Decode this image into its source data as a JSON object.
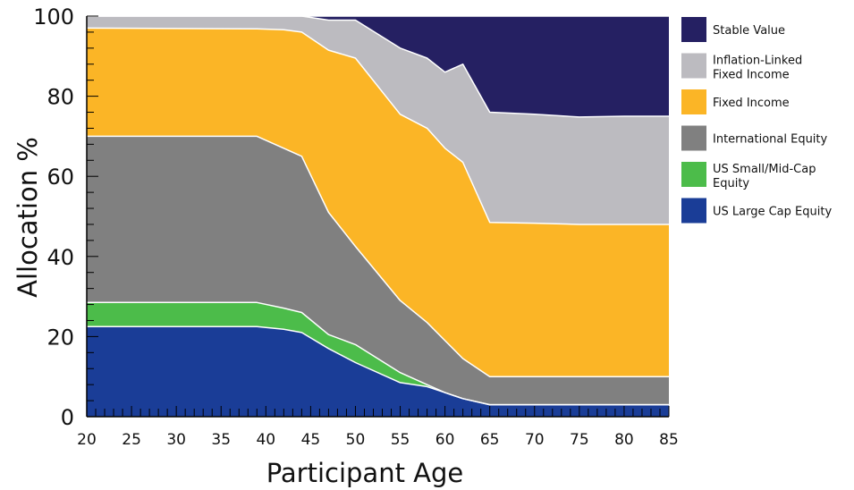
{
  "chart_data": {
    "type": "area",
    "stacked": true,
    "xlabel": "Participant Age",
    "ylabel": "Allocation %",
    "xlim": [
      20,
      85
    ],
    "ylim": [
      0,
      100
    ],
    "xticks": [
      20,
      25,
      30,
      35,
      40,
      45,
      50,
      55,
      60,
      65,
      70,
      75,
      80,
      85
    ],
    "yticks": [
      0,
      20,
      40,
      60,
      80,
      100
    ],
    "legend_position": "right",
    "grid": false,
    "x": [
      20,
      39,
      42,
      44,
      47,
      50,
      55,
      58,
      60,
      62,
      65,
      70,
      75,
      80,
      85
    ],
    "series": [
      {
        "name": "US Large Cap Equity",
        "color": "#1a3d97",
        "values": [
          22.5,
          22.5,
          21.8,
          21,
          17,
          13.5,
          8.5,
          7.5,
          6,
          4.5,
          3,
          3,
          3,
          3,
          3
        ]
      },
      {
        "name": "US Small/Mid-Cap Equity",
        "color": "#4cbc4a",
        "values": [
          6,
          6,
          5.3,
          5,
          3.5,
          4.5,
          2.5,
          0.5,
          0,
          0,
          0,
          0,
          0,
          0,
          0
        ]
      },
      {
        "name": "International Equity",
        "color": "#808080",
        "values": [
          41.5,
          41.5,
          39.9,
          39,
          30.5,
          24.5,
          18,
          15.5,
          13,
          10,
          7,
          7,
          7,
          7,
          7
        ]
      },
      {
        "name": "Fixed Income",
        "color": "#fbb526",
        "values": [
          27,
          26.8,
          29.6,
          31,
          40.5,
          47,
          46.5,
          48.5,
          48,
          49,
          38.5,
          38.3,
          38,
          38,
          38
        ]
      },
      {
        "name": "Inflation-Linked Fixed Income",
        "color": "#bcbbc0",
        "values": [
          3,
          3.2,
          3.4,
          4,
          7.5,
          9.5,
          16.5,
          17.5,
          19,
          24.5,
          27.5,
          27.2,
          26.8,
          27,
          27
        ]
      },
      {
        "name": "Stable Value",
        "color": "#252062",
        "values": [
          0,
          0,
          0,
          0,
          1,
          1,
          8,
          10.5,
          14,
          12,
          24,
          24.5,
          25.2,
          25,
          25
        ]
      }
    ]
  }
}
